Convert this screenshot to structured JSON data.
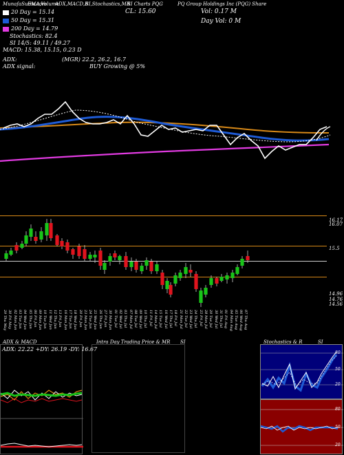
{
  "header": {
    "source": "MunafaSutra.com",
    "study_tabs": [
      "EMA,Volume",
      "ADX,MACD,B",
      "SI,Stochastics,MR",
      "SI Charts PQG",
      "PQ Group Holdings Inc (PQG) Share"
    ],
    "cl_label": "CL: 15.60",
    "vol_label": "Vol: 0.17 M",
    "day_vol_label": "Day Vol: 0   M"
  },
  "legend": {
    "ema20": {
      "text": "20   Day  = 15.14",
      "color": "#ffffff"
    },
    "ema50": {
      "text": "50   Day  = 15.31",
      "color": "#1e5bd6"
    },
    "ema200": {
      "text": "200  Day  = 14.79",
      "color": "#e23be2"
    }
  },
  "indicators": {
    "stochastics": "Stochastics: 82.4",
    "si": "SI 14/5: 49.11 / 49.27",
    "macd": "MACD: 15.38,  15.15,  0.23 D",
    "adx_label": "ADX:",
    "adx_values": "(MGR) 22.2,  26.2,  16.7",
    "adx_signal_label": "ADX   signal:",
    "adx_signal_value": "BUY Growing @ 5%"
  },
  "price_levels": [
    "16.17",
    "16.07",
    "15.5",
    "14.96",
    "14.76",
    "14.56"
  ],
  "dates": [
    "29 Thu May",
    "30 Fri May",
    "02 Mon Jun",
    "03 Tue Jun",
    "04 Wed Jun",
    "05 Thu Jun",
    "06 Fri Jun",
    "09 Mon Jun",
    "10 Tue Jun",
    "11 Wed Jun",
    "12 Thu Jun",
    "13 Fri Jun",
    "16 Mon Jun",
    "17 Tue Jun",
    "18 Wed Jun",
    "20 Fri Jun",
    "23 Mon Jun",
    "24 Tue Jun",
    "25 Wed Jun",
    "26 Thu Jun",
    "27 Fri Jun",
    "30 Mon Jun",
    "01 Tue Jul",
    "02 Wed Jul",
    "03 Thu Jul",
    "07 Mon Jul",
    "08 Tue Jul",
    "09 Wed Jul",
    "10 Thu Jul",
    "11 Fri Jul",
    "14 Mon Jul",
    "15 Tue Jul",
    "16 Wed Jul",
    "17 Thu Jul",
    "18 Fri Jul",
    "21 Mon Jul",
    "22 Tue Jul",
    "23 Wed Jul",
    "24 Thu Jul",
    "25 Fri Jul",
    "28 Mon Jul",
    "29 Tue Jul",
    "30 Wed Jul",
    "31 Thu Jul",
    "01 Fri Aug",
    "04 Mon Aug",
    "05 Tue Aug",
    "06 Wed Aug",
    "07 Thu Aug"
  ],
  "panels": {
    "adx_title": "ADX  & MACD",
    "adx_values": "ADX: 22.22  +DY: 26.19  -DY: 16.67",
    "intraday_title": "Intra  Day Trading Price  & MR",
    "intraday_si": "SI",
    "stoch_title": "Stochastics & R",
    "stoch_si": "SI",
    "stoch_levels": [
      "80",
      "50",
      "20"
    ],
    "rsi_levels": [
      "80",
      "50",
      "20"
    ]
  },
  "colors": {
    "bull": "#19c419",
    "bear": "#e0141e",
    "ema20": "#ffffff",
    "ema50": "#1e5bd6",
    "ema200": "#e23be2",
    "orange": "#d98a18",
    "stoch_bg": "#00007a",
    "rsi_bg": "#8a0000"
  }
}
